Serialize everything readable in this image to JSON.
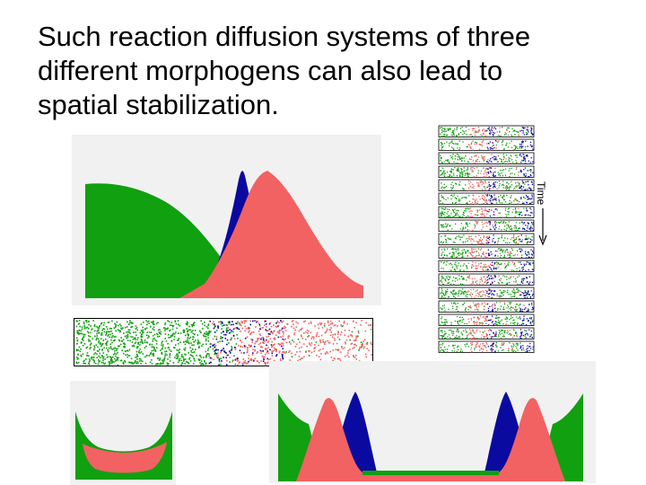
{
  "slide": {
    "title_lines": [
      "Such reaction diffusion systems of three",
      "different morphogens can also lead to",
      "spatial stabilization."
    ]
  },
  "timeline": {
    "axis_label": "Time"
  },
  "colors": {
    "green": "#10a010",
    "blue": "#0a0aa0",
    "red": "#f26262",
    "panel_background": "#f1f1f1",
    "strip_background": "#ffffff"
  }
}
